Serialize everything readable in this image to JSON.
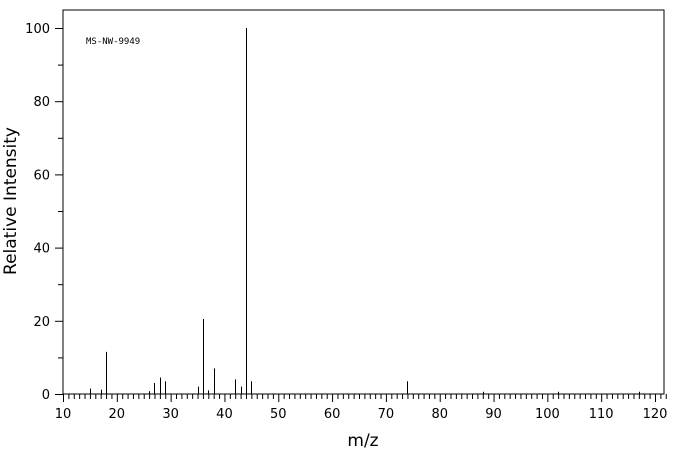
{
  "chart_data": {
    "type": "bar",
    "annotation": "MS-NW-9949",
    "xlabel": "m/z",
    "ylabel": "Relative Intensity",
    "xlim": [
      10,
      122
    ],
    "ylim": [
      0,
      105
    ],
    "x_ticks": [
      10,
      20,
      30,
      40,
      50,
      60,
      70,
      80,
      90,
      100,
      110,
      120
    ],
    "y_ticks": [
      0,
      20,
      40,
      60,
      80,
      100
    ],
    "grid": false,
    "legend": "none",
    "peaks": [
      {
        "mz": 15,
        "intensity": 1.5
      },
      {
        "mz": 17,
        "intensity": 1.2
      },
      {
        "mz": 18,
        "intensity": 11.5
      },
      {
        "mz": 26,
        "intensity": 0.8
      },
      {
        "mz": 27,
        "intensity": 3.0
      },
      {
        "mz": 28,
        "intensity": 4.5
      },
      {
        "mz": 29,
        "intensity": 3.5
      },
      {
        "mz": 35,
        "intensity": 2.0
      },
      {
        "mz": 36,
        "intensity": 20.5
      },
      {
        "mz": 37,
        "intensity": 1.0
      },
      {
        "mz": 38,
        "intensity": 7.0
      },
      {
        "mz": 42,
        "intensity": 4.0
      },
      {
        "mz": 43,
        "intensity": 2.0
      },
      {
        "mz": 44,
        "intensity": 100
      },
      {
        "mz": 45,
        "intensity": 3.5
      },
      {
        "mz": 74,
        "intensity": 3.5
      },
      {
        "mz": 88,
        "intensity": 0.6
      },
      {
        "mz": 102,
        "intensity": 0.6
      },
      {
        "mz": 117,
        "intensity": 0.6
      }
    ],
    "colors": {
      "axis": "#000000",
      "peak": "#000000",
      "background": "#ffffff"
    }
  }
}
